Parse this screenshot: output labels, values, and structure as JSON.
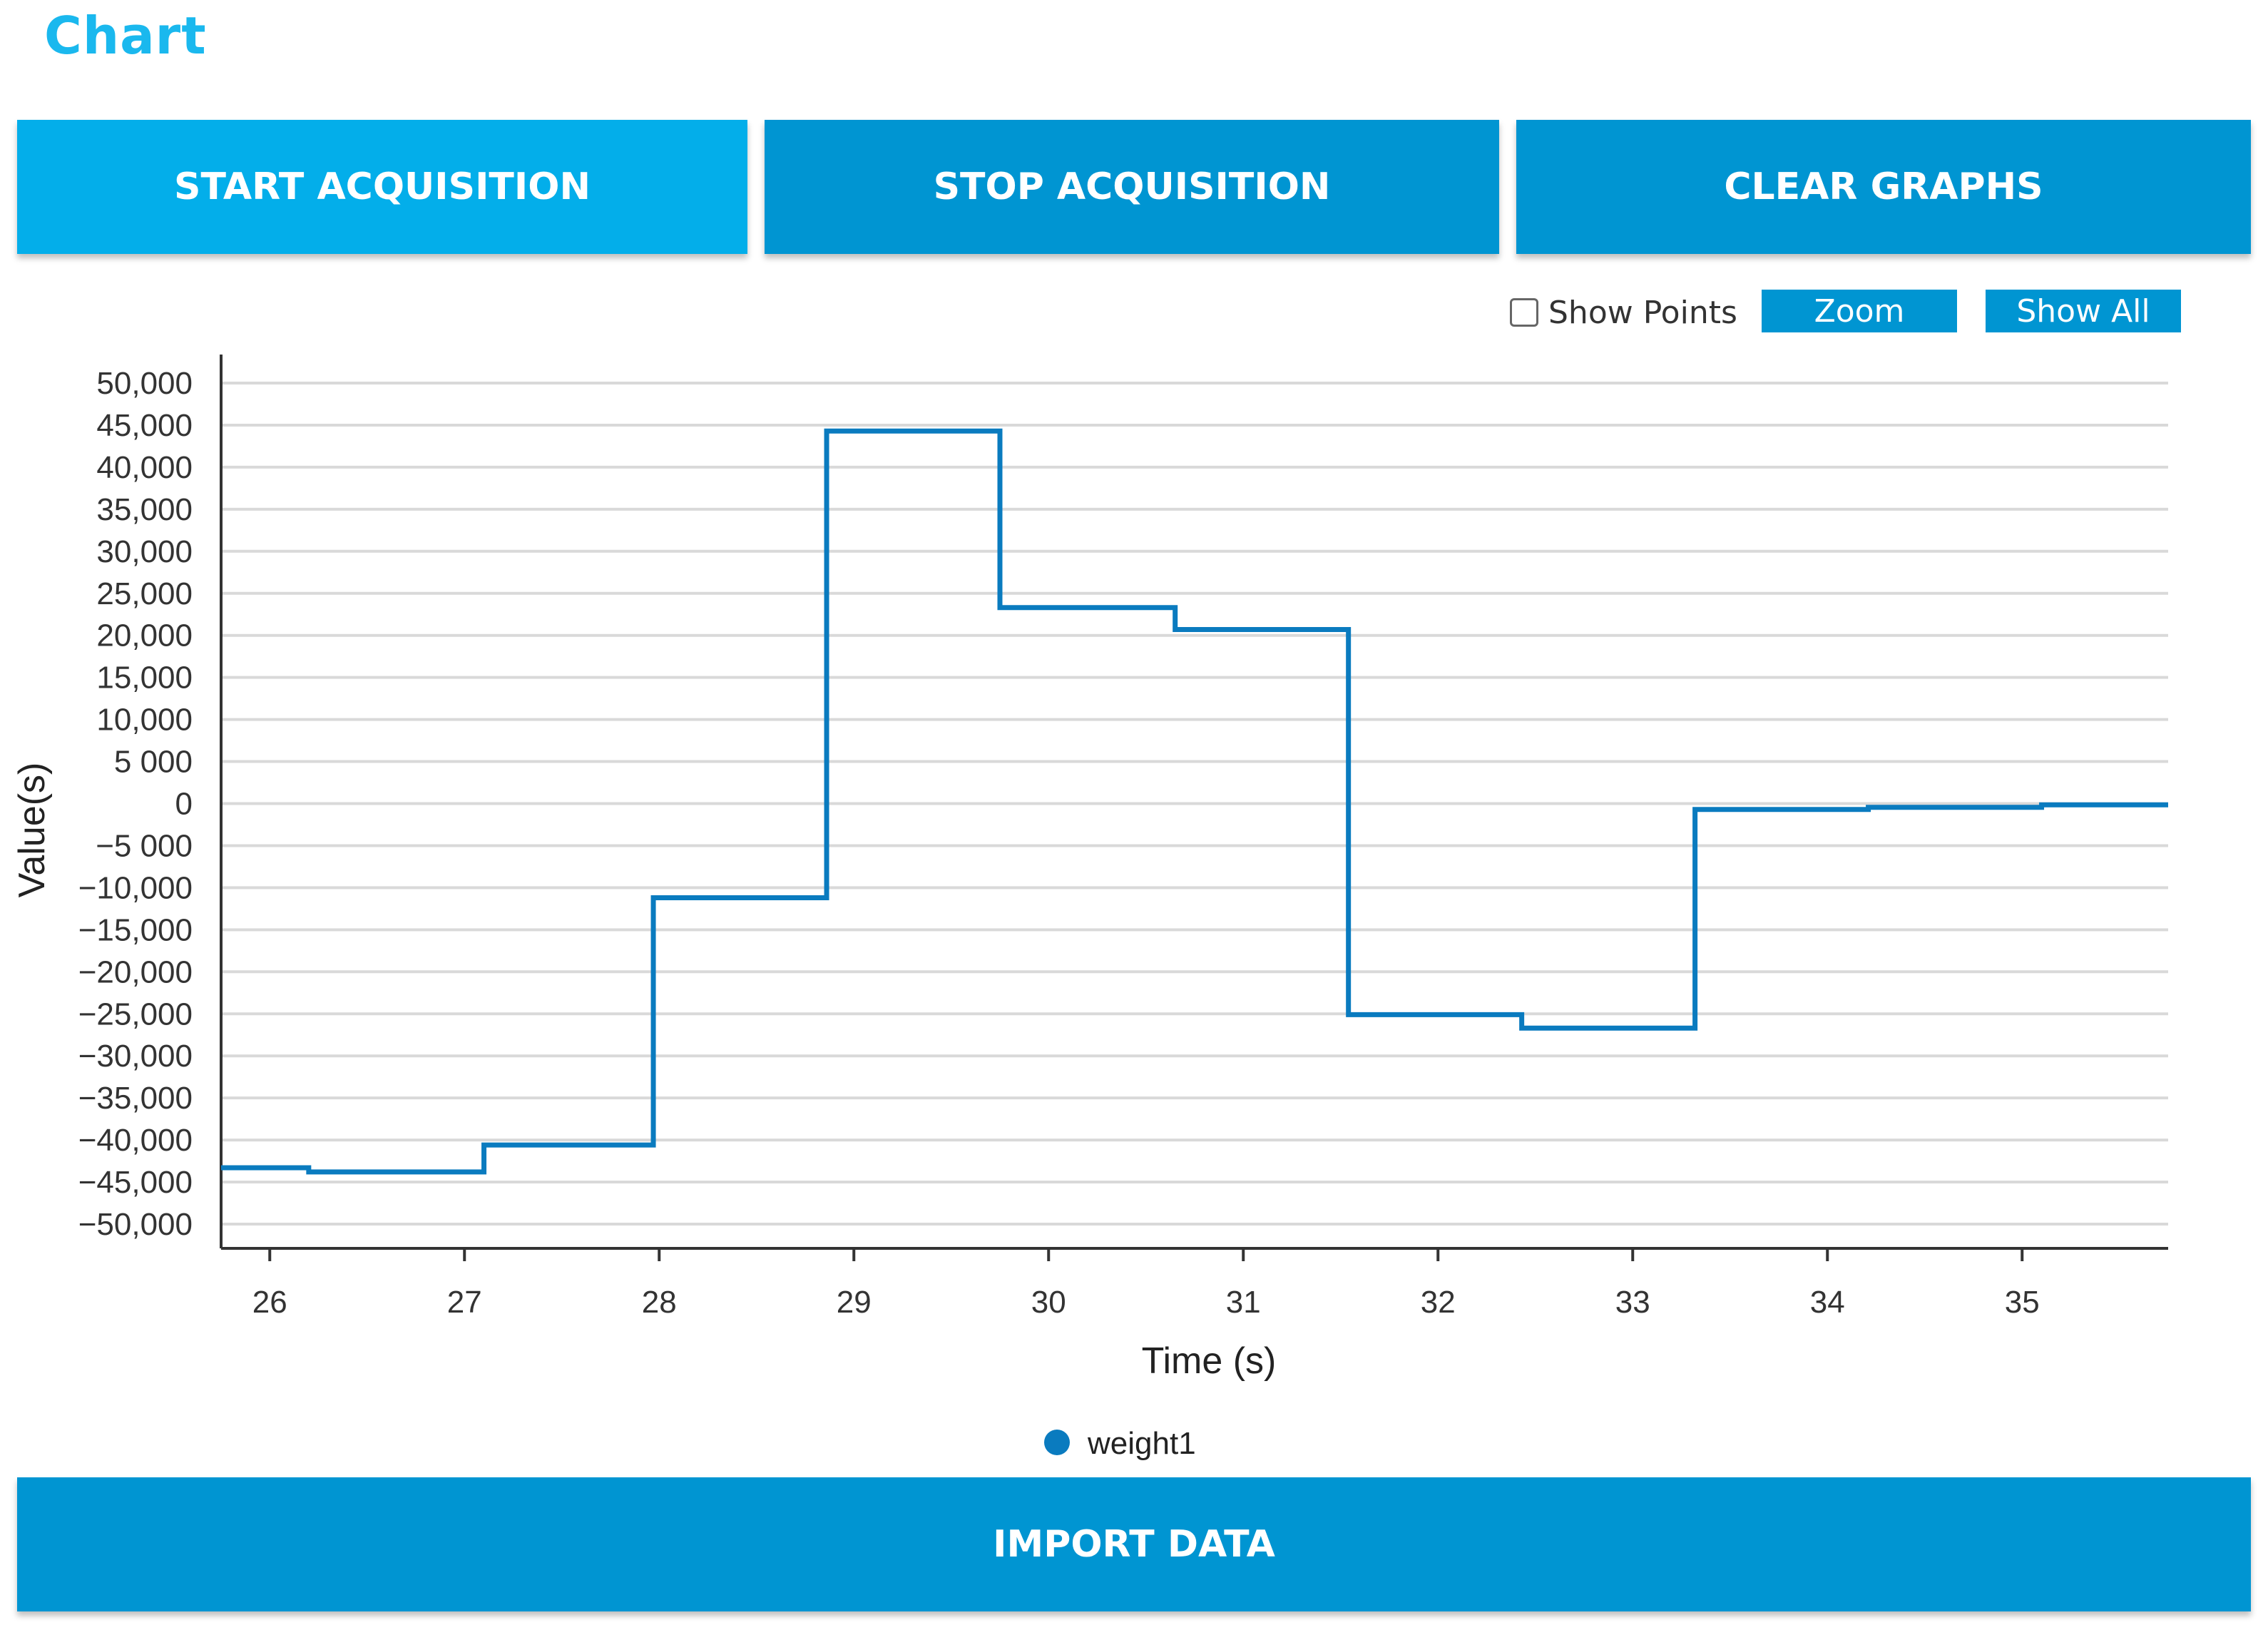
{
  "page": {
    "title": "Chart"
  },
  "buttons": {
    "start": "START ACQUISITION",
    "stop": "STOP ACQUISITION",
    "clear": "CLEAR GRAPHS",
    "import": "IMPORT DATA"
  },
  "controls": {
    "show_points_label": "Show Points",
    "show_points_checked": false,
    "zoom_label": "Zoom",
    "show_all_label": "Show All"
  },
  "colors": {
    "title": "#1ab8ee",
    "start_button": "#03aeea",
    "button": "#0095d2",
    "series_line": "#0a7bbf",
    "grid": "#d9d9d9"
  },
  "chart_data": {
    "type": "line",
    "interpolation": "step-after",
    "xlabel": "Time (s)",
    "ylabel": "Value(s)",
    "xlim": [
      25.75,
      35.75
    ],
    "ylim": [
      -50000,
      50000
    ],
    "grid": "horizontal",
    "legend_position": "bottom-center",
    "x_ticks": [
      26,
      27,
      28,
      29,
      30,
      31,
      32,
      33,
      34,
      35
    ],
    "y_ticks": [
      {
        "v": 50000,
        "label": "50,000"
      },
      {
        "v": 45000,
        "label": "45,000"
      },
      {
        "v": 40000,
        "label": "40,000"
      },
      {
        "v": 35000,
        "label": "35,000"
      },
      {
        "v": 30000,
        "label": "30,000"
      },
      {
        "v": 25000,
        "label": "25,000"
      },
      {
        "v": 20000,
        "label": "20,000"
      },
      {
        "v": 15000,
        "label": "15,000"
      },
      {
        "v": 10000,
        "label": "10,000"
      },
      {
        "v": 5000,
        "label": "5 000"
      },
      {
        "v": 0,
        "label": "0"
      },
      {
        "v": -5000,
        "label": "−5 000"
      },
      {
        "v": -10000,
        "label": "−10,000"
      },
      {
        "v": -15000,
        "label": "−15,000"
      },
      {
        "v": -20000,
        "label": "−20,000"
      },
      {
        "v": -25000,
        "label": "−25,000"
      },
      {
        "v": -30000,
        "label": "−30,000"
      },
      {
        "v": -35000,
        "label": "−35,000"
      },
      {
        "v": -40000,
        "label": "−40,000"
      },
      {
        "v": -45000,
        "label": "−45,000"
      },
      {
        "v": -50000,
        "label": "−50,000"
      }
    ],
    "series": [
      {
        "name": "weight1",
        "x": [
          25.75,
          26.2,
          27.1,
          27.97,
          28.86,
          29.75,
          30.65,
          31.54,
          32.43,
          33.32,
          34.21,
          35.1,
          35.75
        ],
        "y": [
          -43300,
          -43800,
          -40600,
          -11200,
          44300,
          23300,
          20700,
          -25100,
          -26700,
          -700,
          -450,
          -150,
          -150
        ]
      }
    ]
  }
}
